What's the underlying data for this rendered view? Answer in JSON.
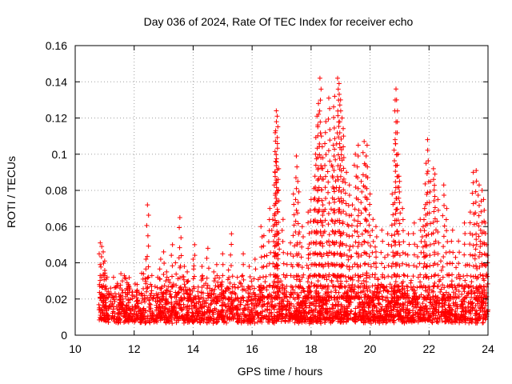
{
  "chart_data": {
    "type": "scatter",
    "title": "Day 036 of 2024, Rate Of TEC Index for receiver echo",
    "xlabel": "GPS time / hours",
    "ylabel": "ROTI / TECUs",
    "xlim": [
      10,
      24
    ],
    "ylim": [
      0,
      0.16
    ],
    "xticks": [
      10,
      12,
      14,
      16,
      18,
      20,
      22,
      24
    ],
    "xtick_labels": [
      "10",
      "12",
      "14",
      "16",
      "18",
      "20",
      "22",
      "24"
    ],
    "yticks": [
      0,
      0.02,
      0.04,
      0.06,
      0.08,
      0.1,
      0.12,
      0.14,
      0.16
    ],
    "ytick_labels": [
      "0",
      "0.02",
      "0.04",
      "0.06",
      "0.08",
      "0.1",
      "0.12",
      "0.14",
      "0.16"
    ],
    "grid": true,
    "marker": "+",
    "color": "#ff0000",
    "series": [
      {
        "points": [
          [
            10.85,
            0.051
          ],
          [
            10.9,
            0.049
          ],
          [
            10.95,
            0.046
          ],
          [
            11.0,
            0.041
          ],
          [
            11.0,
            0.033
          ],
          [
            11.05,
            0.031
          ],
          [
            11.3,
            0.032
          ],
          [
            11.55,
            0.034
          ],
          [
            11.6,
            0.03
          ],
          [
            12.1,
            0.028
          ],
          [
            12.3,
            0.031
          ],
          [
            12.4,
            0.042
          ],
          [
            12.45,
            0.072
          ],
          [
            12.8,
            0.032
          ],
          [
            12.9,
            0.042
          ],
          [
            13.0,
            0.046
          ],
          [
            13.1,
            0.035
          ],
          [
            13.3,
            0.05
          ],
          [
            13.4,
            0.04
          ],
          [
            13.55,
            0.065
          ],
          [
            13.6,
            0.044
          ],
          [
            13.8,
            0.035
          ],
          [
            14.0,
            0.042
          ],
          [
            14.05,
            0.05
          ],
          [
            14.3,
            0.038
          ],
          [
            14.5,
            0.048
          ],
          [
            14.7,
            0.035
          ],
          [
            15.0,
            0.045
          ],
          [
            15.3,
            0.056
          ],
          [
            15.5,
            0.032
          ],
          [
            15.7,
            0.045
          ],
          [
            15.9,
            0.038
          ],
          [
            16.1,
            0.042
          ],
          [
            16.3,
            0.06
          ],
          [
            16.4,
            0.055
          ],
          [
            16.6,
            0.07
          ],
          [
            16.7,
            0.064
          ],
          [
            16.75,
            0.083
          ],
          [
            16.8,
            0.096
          ],
          [
            16.8,
            0.113
          ],
          [
            16.82,
            0.124
          ],
          [
            16.85,
            0.121
          ],
          [
            16.9,
            0.092
          ],
          [
            17.05,
            0.064
          ],
          [
            17.2,
            0.045
          ],
          [
            17.4,
            0.078
          ],
          [
            17.5,
            0.099
          ],
          [
            17.55,
            0.085
          ],
          [
            17.7,
            0.06
          ],
          [
            17.9,
            0.068
          ],
          [
            18.0,
            0.075
          ],
          [
            18.1,
            0.081
          ],
          [
            18.15,
            0.1
          ],
          [
            18.2,
            0.121
          ],
          [
            18.25,
            0.128
          ],
          [
            18.3,
            0.142
          ],
          [
            18.35,
            0.11
          ],
          [
            18.4,
            0.098
          ],
          [
            18.5,
            0.118
          ],
          [
            18.6,
            0.131
          ],
          [
            18.7,
            0.094
          ],
          [
            18.75,
            0.105
          ],
          [
            18.8,
            0.132
          ],
          [
            18.9,
            0.142
          ],
          [
            18.95,
            0.139
          ],
          [
            19.0,
            0.13
          ],
          [
            19.05,
            0.12
          ],
          [
            19.1,
            0.11
          ],
          [
            19.2,
            0.09
          ],
          [
            19.3,
            0.083
          ],
          [
            19.4,
            0.072
          ],
          [
            19.5,
            0.1
          ],
          [
            19.6,
            0.105
          ],
          [
            19.7,
            0.085
          ],
          [
            19.8,
            0.107
          ],
          [
            19.85,
            0.094
          ],
          [
            19.9,
            0.105
          ],
          [
            20.0,
            0.078
          ],
          [
            20.1,
            0.064
          ],
          [
            20.2,
            0.06
          ],
          [
            20.4,
            0.058
          ],
          [
            20.6,
            0.056
          ],
          [
            20.75,
            0.078
          ],
          [
            20.85,
            0.108
          ],
          [
            20.88,
            0.136
          ],
          [
            20.9,
            0.13
          ],
          [
            20.95,
            0.1
          ],
          [
            21.0,
            0.085
          ],
          [
            21.1,
            0.07
          ],
          [
            21.3,
            0.056
          ],
          [
            21.5,
            0.062
          ],
          [
            21.7,
            0.064
          ],
          [
            21.8,
            0.06
          ],
          [
            21.85,
            0.07
          ],
          [
            21.9,
            0.095
          ],
          [
            21.95,
            0.108
          ],
          [
            22.05,
            0.085
          ],
          [
            22.15,
            0.092
          ],
          [
            22.2,
            0.089
          ],
          [
            22.3,
            0.075
          ],
          [
            22.5,
            0.083
          ],
          [
            22.6,
            0.07
          ],
          [
            22.8,
            0.058
          ],
          [
            23.0,
            0.052
          ],
          [
            23.2,
            0.062
          ],
          [
            23.4,
            0.068
          ],
          [
            23.5,
            0.09
          ],
          [
            23.6,
            0.091
          ],
          [
            23.7,
            0.083
          ],
          [
            23.8,
            0.08
          ],
          [
            23.85,
            0.075
          ],
          [
            23.9,
            0.062
          ],
          [
            23.95,
            0.05
          ],
          [
            23.98,
            0.04
          ],
          [
            20.5,
            0.043
          ],
          [
            19.3,
            0.047
          ],
          [
            18.6,
            0.052
          ],
          [
            17.9,
            0.048
          ],
          [
            17.3,
            0.051
          ],
          [
            16.5,
            0.044
          ],
          [
            22.9,
            0.043
          ],
          [
            21.2,
            0.045
          ],
          [
            15.2,
            0.036
          ],
          [
            14.8,
            0.039
          ],
          [
            13.7,
            0.038
          ],
          [
            12.6,
            0.033
          ],
          [
            11.8,
            0.028
          ],
          [
            11.2,
            0.026
          ],
          [
            23.3,
            0.039
          ],
          [
            22.4,
            0.041
          ],
          [
            20.2,
            0.046
          ],
          [
            19.0,
            0.055
          ],
          [
            18.1,
            0.063
          ],
          [
            17.6,
            0.057
          ],
          [
            16.9,
            0.053
          ],
          [
            21.6,
            0.049
          ],
          [
            22.7,
            0.046
          ],
          [
            23.6,
            0.053
          ],
          [
            18.4,
            0.072
          ],
          [
            18.8,
            0.069
          ],
          [
            19.6,
            0.066
          ],
          [
            20.8,
            0.052
          ],
          [
            21.9,
            0.055
          ],
          [
            23.75,
            0.058
          ]
        ]
      }
    ],
    "dense_band": {
      "x_range": [
        10.8,
        24.0
      ],
      "y_min": 0.003,
      "y_typical": 0.014,
      "note": "dense cluster of + markers between about 0.005 and 0.03 ROTI across the whole time range"
    }
  }
}
